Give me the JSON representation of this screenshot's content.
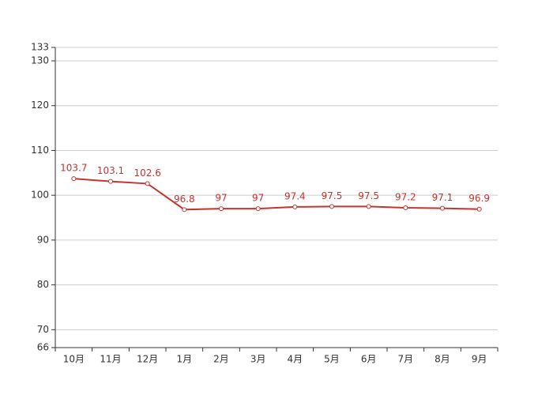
{
  "chart_data": {
    "type": "line",
    "categories": [
      "10月",
      "11月",
      "12月",
      "1月",
      "2月",
      "3月",
      "4月",
      "5月",
      "6月",
      "7月",
      "8月",
      "9月"
    ],
    "values": [
      103.7,
      103.1,
      102.6,
      96.8,
      97,
      97,
      97.4,
      97.5,
      97.5,
      97.2,
      97.1,
      96.9
    ],
    "color": "#c23531",
    "ylim": [
      66,
      133
    ],
    "yticks": [
      66,
      70,
      80,
      90,
      100,
      110,
      120,
      130,
      133
    ],
    "grid": true
  }
}
